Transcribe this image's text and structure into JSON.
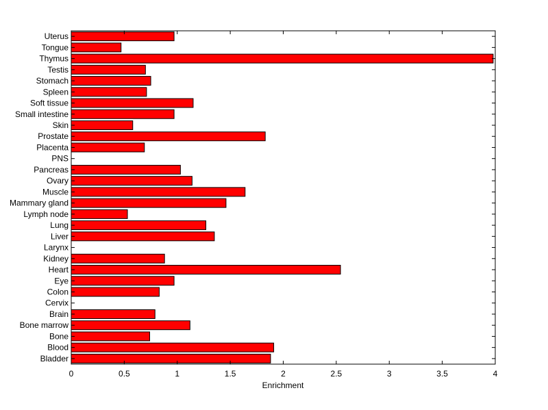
{
  "chart_data": {
    "type": "bar",
    "orientation": "horizontal",
    "categories": [
      "Uterus",
      "Tongue",
      "Thymus",
      "Testis",
      "Stomach",
      "Spleen",
      "Soft tissue",
      "Small intestine",
      "Skin",
      "Prostate",
      "Placenta",
      "PNS",
      "Pancreas",
      "Ovary",
      "Muscle",
      "Mammary gland",
      "Lymph node",
      "Lung",
      "Liver",
      "Larynx",
      "Kidney",
      "Heart",
      "Eye",
      "Colon",
      "Cervix",
      "Brain",
      "Bone marrow",
      "Bone",
      "Blood",
      "Bladder"
    ],
    "values": [
      0.97,
      0.47,
      3.98,
      0.7,
      0.75,
      0.71,
      1.15,
      0.97,
      0.58,
      1.83,
      0.69,
      0,
      1.03,
      1.14,
      1.64,
      1.46,
      0.53,
      1.27,
      1.35,
      0,
      0.88,
      2.54,
      0.97,
      0.83,
      0,
      0.79,
      1.12,
      0.74,
      1.91,
      1.88
    ],
    "title": "",
    "xlabel": "Enrichment",
    "ylabel": "",
    "xlim": [
      0,
      4
    ],
    "xticks": [
      "0",
      "0.5",
      "1",
      "1.5",
      "2",
      "2.5",
      "3",
      "3.5",
      "4"
    ],
    "grid": false,
    "bar_color": "#ff0000",
    "edge_color": "#000000"
  }
}
